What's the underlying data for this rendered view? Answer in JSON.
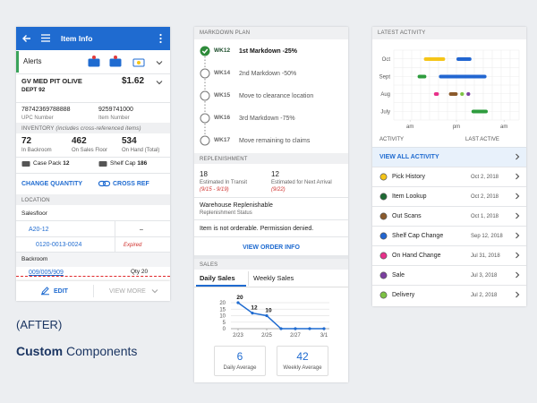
{
  "caption": {
    "tag": "(AFTER)",
    "bold": "Custom",
    "rest": "Components"
  },
  "item_info": {
    "header": "Item Info",
    "alerts": "Alerts",
    "item": {
      "name": "GV MED PIT OLIVE",
      "dept": "DEPT 92",
      "price": "$1.62"
    },
    "ids": [
      {
        "value": "78742369788888",
        "label": "UPC Number"
      },
      {
        "value": "9259741000",
        "label": "Item Number"
      }
    ],
    "inventory_title": "INVENTORY",
    "inventory_note": "(includes cross-referenced items)",
    "counts": [
      {
        "value": 72,
        "label": "In Backroom"
      },
      {
        "value": 462,
        "label": "On Sales Floor"
      },
      {
        "value": 534,
        "label": "On Hand (Total)"
      }
    ],
    "case_pack": {
      "label": "Case Pack",
      "value": 12
    },
    "shelf_cap": {
      "label": "Shelf Cap",
      "value": 186
    },
    "actions": [
      "CHANGE QUANTITY",
      "CROSS REF"
    ],
    "location_title": "LOCATION",
    "salesfloor": "Salesfloor",
    "locations": [
      {
        "code": "A20-12",
        "status": "–"
      },
      {
        "code": "0120-0013-0024",
        "status": "Expired"
      }
    ],
    "backroom": "Backroom",
    "backroom_location": {
      "code": "009/005/909",
      "qty": "Qty 20"
    },
    "footer": [
      "EDIT",
      "VIEW MORE"
    ]
  },
  "markdown": {
    "title": "MARKDOWN PLAN",
    "steps": [
      {
        "week": "WK12",
        "text": "1st Markdown -25%",
        "done": true
      },
      {
        "week": "WK14",
        "text": "2nd Markdown -50%",
        "done": false
      },
      {
        "week": "WK15",
        "text": "Move to clearance location",
        "done": false
      },
      {
        "week": "WK16",
        "text": "3rd Markdown -75%",
        "done": false
      },
      {
        "week": "WK17",
        "text": "Move remaining to claims",
        "done": false
      }
    ],
    "replenishment": {
      "title": "REPLENISHMENT",
      "estimates": [
        {
          "value": 18,
          "label": "Estimated In Transit",
          "range": "(9/15 - 9/19)"
        },
        {
          "value": 12,
          "label": "Estimated for Next Arrival",
          "range": "(9/22)"
        }
      ],
      "status": "Warehouse Replenishable",
      "status_label": "Replenishment Status",
      "message": "Item is not orderable. Permission denied.",
      "link": "VIEW ORDER INFO"
    },
    "sales": {
      "title": "SALES",
      "tabs": [
        "Daily Sales",
        "Weekly Sales"
      ],
      "chart_data": {
        "type": "line",
        "categories": [
          "2/23",
          null,
          "2/25",
          null,
          "2/27",
          null,
          "3/1"
        ],
        "values": [
          20,
          12,
          10,
          0,
          0,
          0,
          0
        ],
        "color": "#1f6bd0",
        "ylim": [
          0,
          20
        ],
        "yticks": [
          0,
          5,
          10,
          15,
          20
        ],
        "grid": true
      },
      "stats": [
        {
          "value": 6,
          "label": "Daily Average"
        },
        {
          "value": 42,
          "label": "Weekly Average"
        }
      ]
    }
  },
  "activity": {
    "title": "LATEST ACTIVITY",
    "chart_data": {
      "type": "timeline",
      "xlim": [
        0,
        100
      ],
      "xticks": [
        {
          "value": 13,
          "label": "am"
        },
        {
          "value": 50,
          "label": "pm"
        },
        {
          "value": 88,
          "label": "am"
        }
      ],
      "grid": true,
      "rows": [
        {
          "label": "Oct",
          "segments": [
            {
              "start": 24,
              "end": 41,
              "color": "#f5c518"
            },
            {
              "start": 50,
              "end": 62,
              "color": "#2266d1"
            }
          ]
        },
        {
          "label": "Sept",
          "segments": [
            {
              "start": 19,
              "end": 26,
              "color": "#2e9c3e"
            },
            {
              "start": 36,
              "end": 74,
              "color": "#2266d1"
            }
          ]
        },
        {
          "label": "Aug",
          "segments": [
            {
              "start": 32,
              "end": 36,
              "color": "#e8308a"
            },
            {
              "start": 44,
              "end": 51,
              "color": "#8b5a2b"
            },
            {
              "start": 53,
              "end": 56,
              "color": "#7cc243"
            },
            {
              "start": 58,
              "end": 61,
              "color": "#7b3fa0"
            }
          ]
        },
        {
          "label": "July",
          "segments": [
            {
              "start": 62,
              "end": 75,
              "color": "#2e9c3e"
            }
          ]
        }
      ]
    },
    "columns": [
      "ACTIVITY",
      "LAST ACTIVE"
    ],
    "view_all": "VIEW ALL ACTIVITY",
    "items": [
      {
        "name": "Pick History",
        "date": "Oct 2, 2018",
        "color": "#f5c518"
      },
      {
        "name": "Item Lookup",
        "date": "Oct 2, 2018",
        "color": "#1e6b34"
      },
      {
        "name": "Out Scans",
        "date": "Oct 1, 2018",
        "color": "#8b5a2b"
      },
      {
        "name": "Shelf Cap Change",
        "date": "Sep 12, 2018",
        "color": "#2266d1"
      },
      {
        "name": "On Hand Change",
        "date": "Jul 31, 2018",
        "color": "#e8308a"
      },
      {
        "name": "Sale",
        "date": "Jul 3, 2018",
        "color": "#7b3fa0"
      },
      {
        "name": "Delivery",
        "date": "Jul 2, 2018",
        "color": "#7cc243"
      }
    ]
  }
}
